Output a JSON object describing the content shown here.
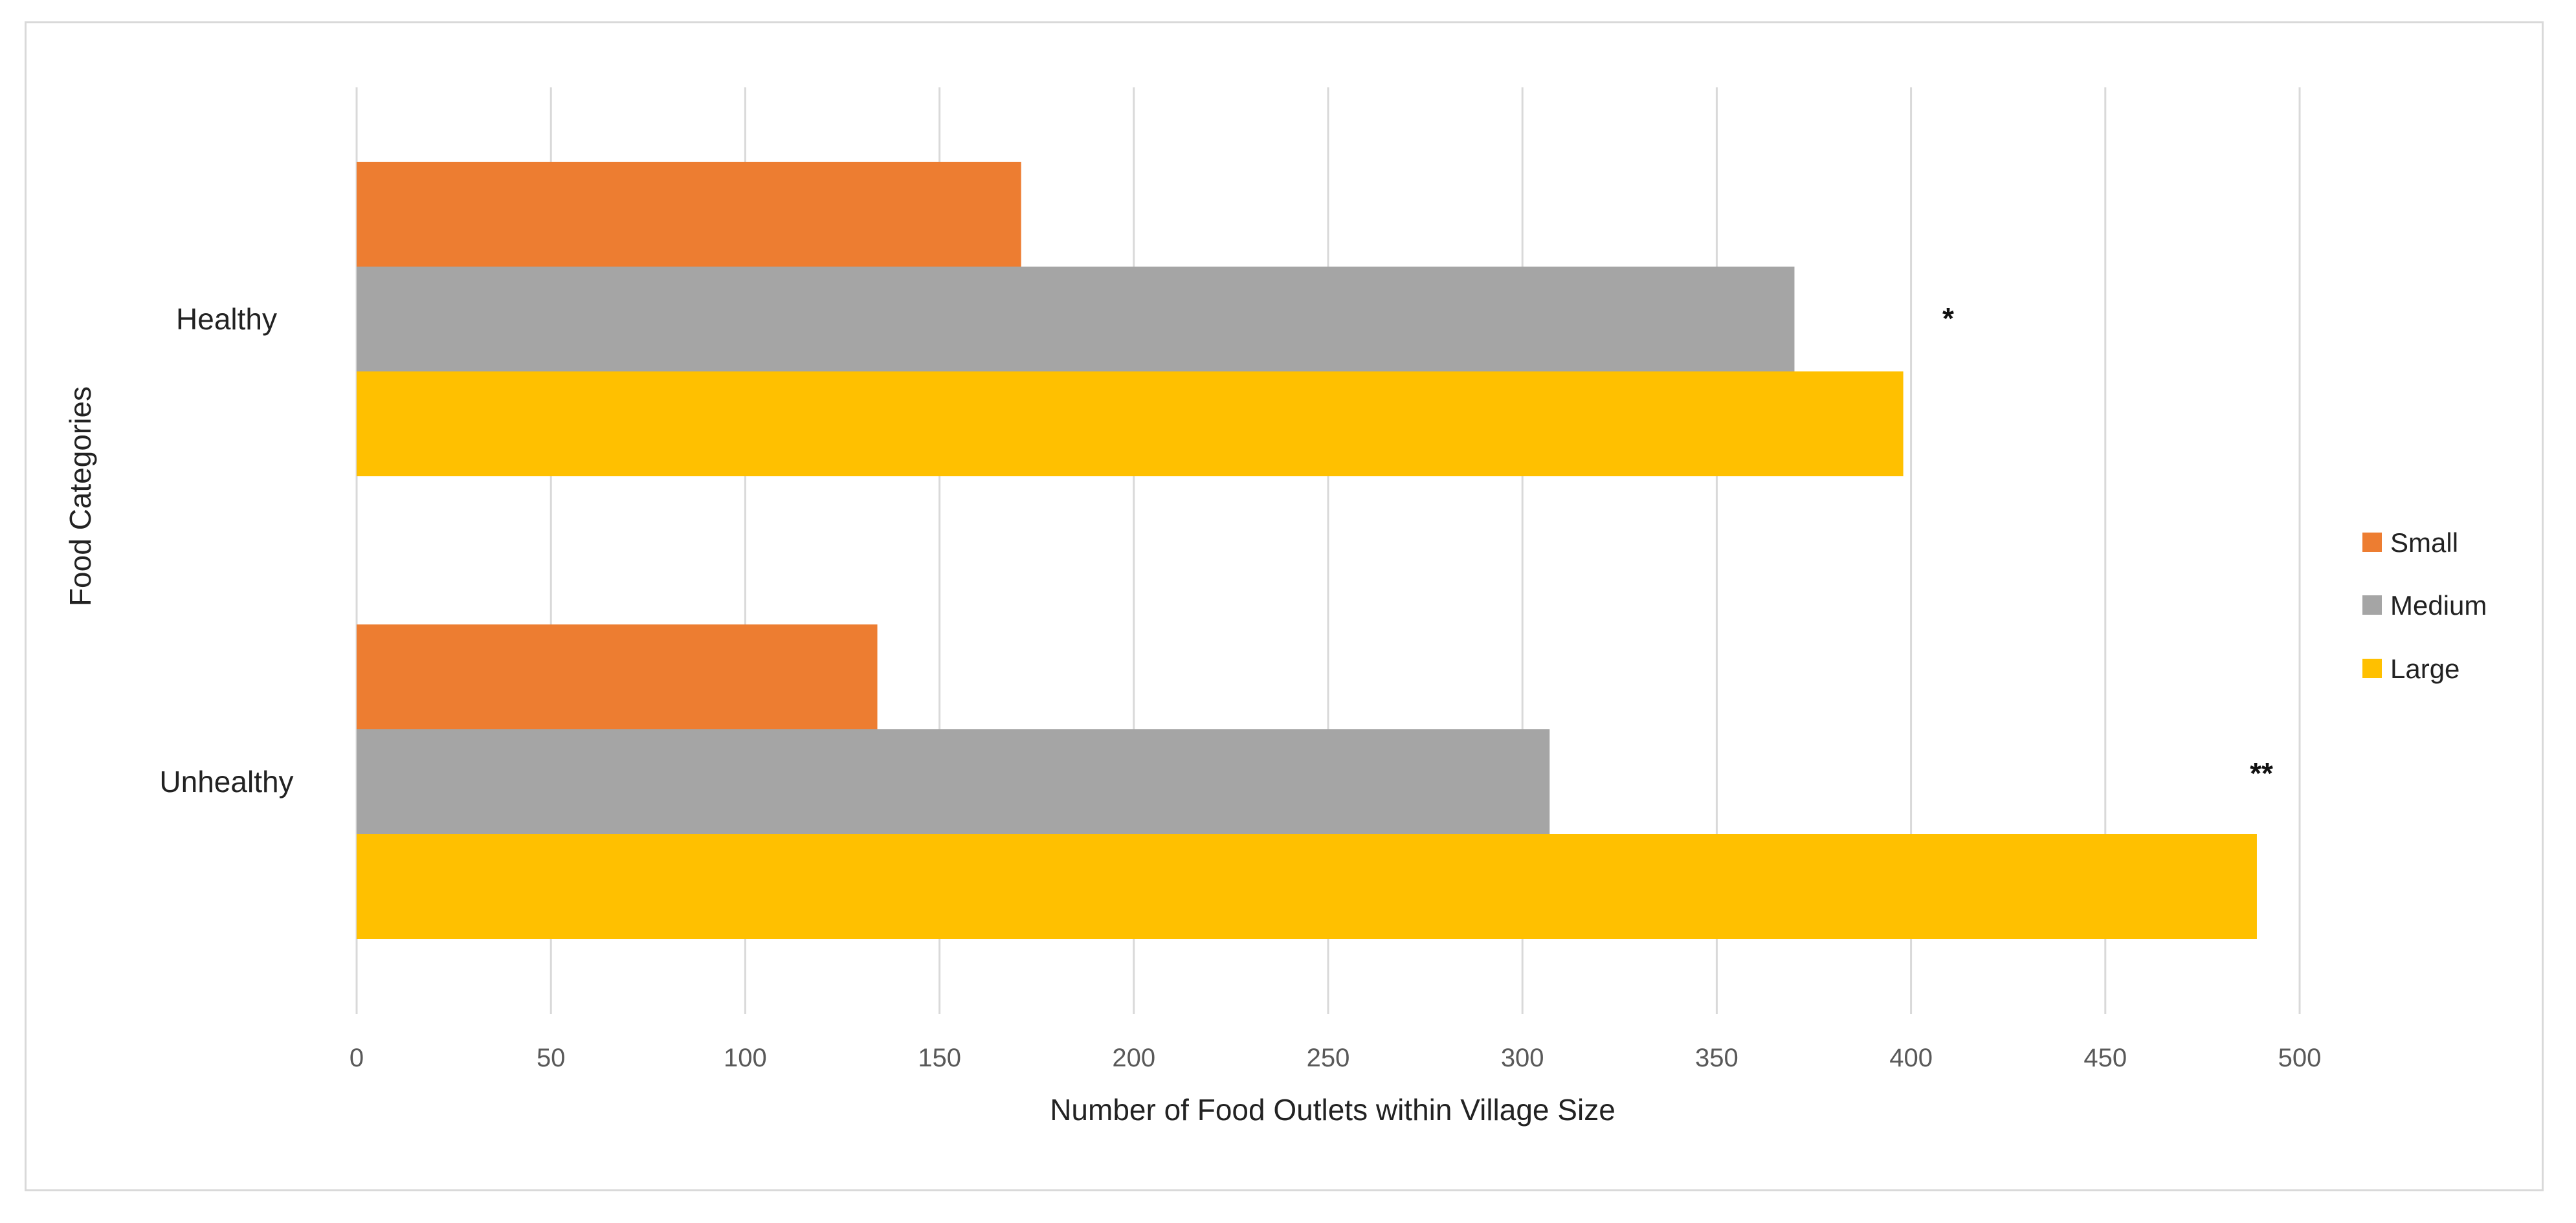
{
  "chart_data": {
    "type": "bar",
    "orientation": "horizontal",
    "title": "",
    "xlabel": "Number of Food Outlets within Village Size",
    "ylabel": "Food Categories",
    "categories": [
      "Healthy",
      "Unhealthy"
    ],
    "series": [
      {
        "name": "Small",
        "color": "#ed7d31",
        "values": [
          171,
          134
        ]
      },
      {
        "name": "Medium",
        "color": "#a5a5a5",
        "values": [
          370,
          307
        ]
      },
      {
        "name": "Large",
        "color": "#ffc000",
        "values": [
          398,
          489
        ]
      }
    ],
    "xlim": [
      0,
      500
    ],
    "xticks": [
      0,
      50,
      100,
      150,
      200,
      250,
      300,
      350,
      400,
      450,
      500
    ],
    "xtick_labels": [
      "0",
      "50",
      "100",
      "150",
      "200",
      "250",
      "300",
      "350",
      "400",
      "450",
      "500"
    ],
    "grid": "vertical",
    "legend_position": "right",
    "annotations": [
      {
        "category": "Healthy",
        "text": "*"
      },
      {
        "category": "Unhealthy",
        "text": "**"
      }
    ]
  }
}
